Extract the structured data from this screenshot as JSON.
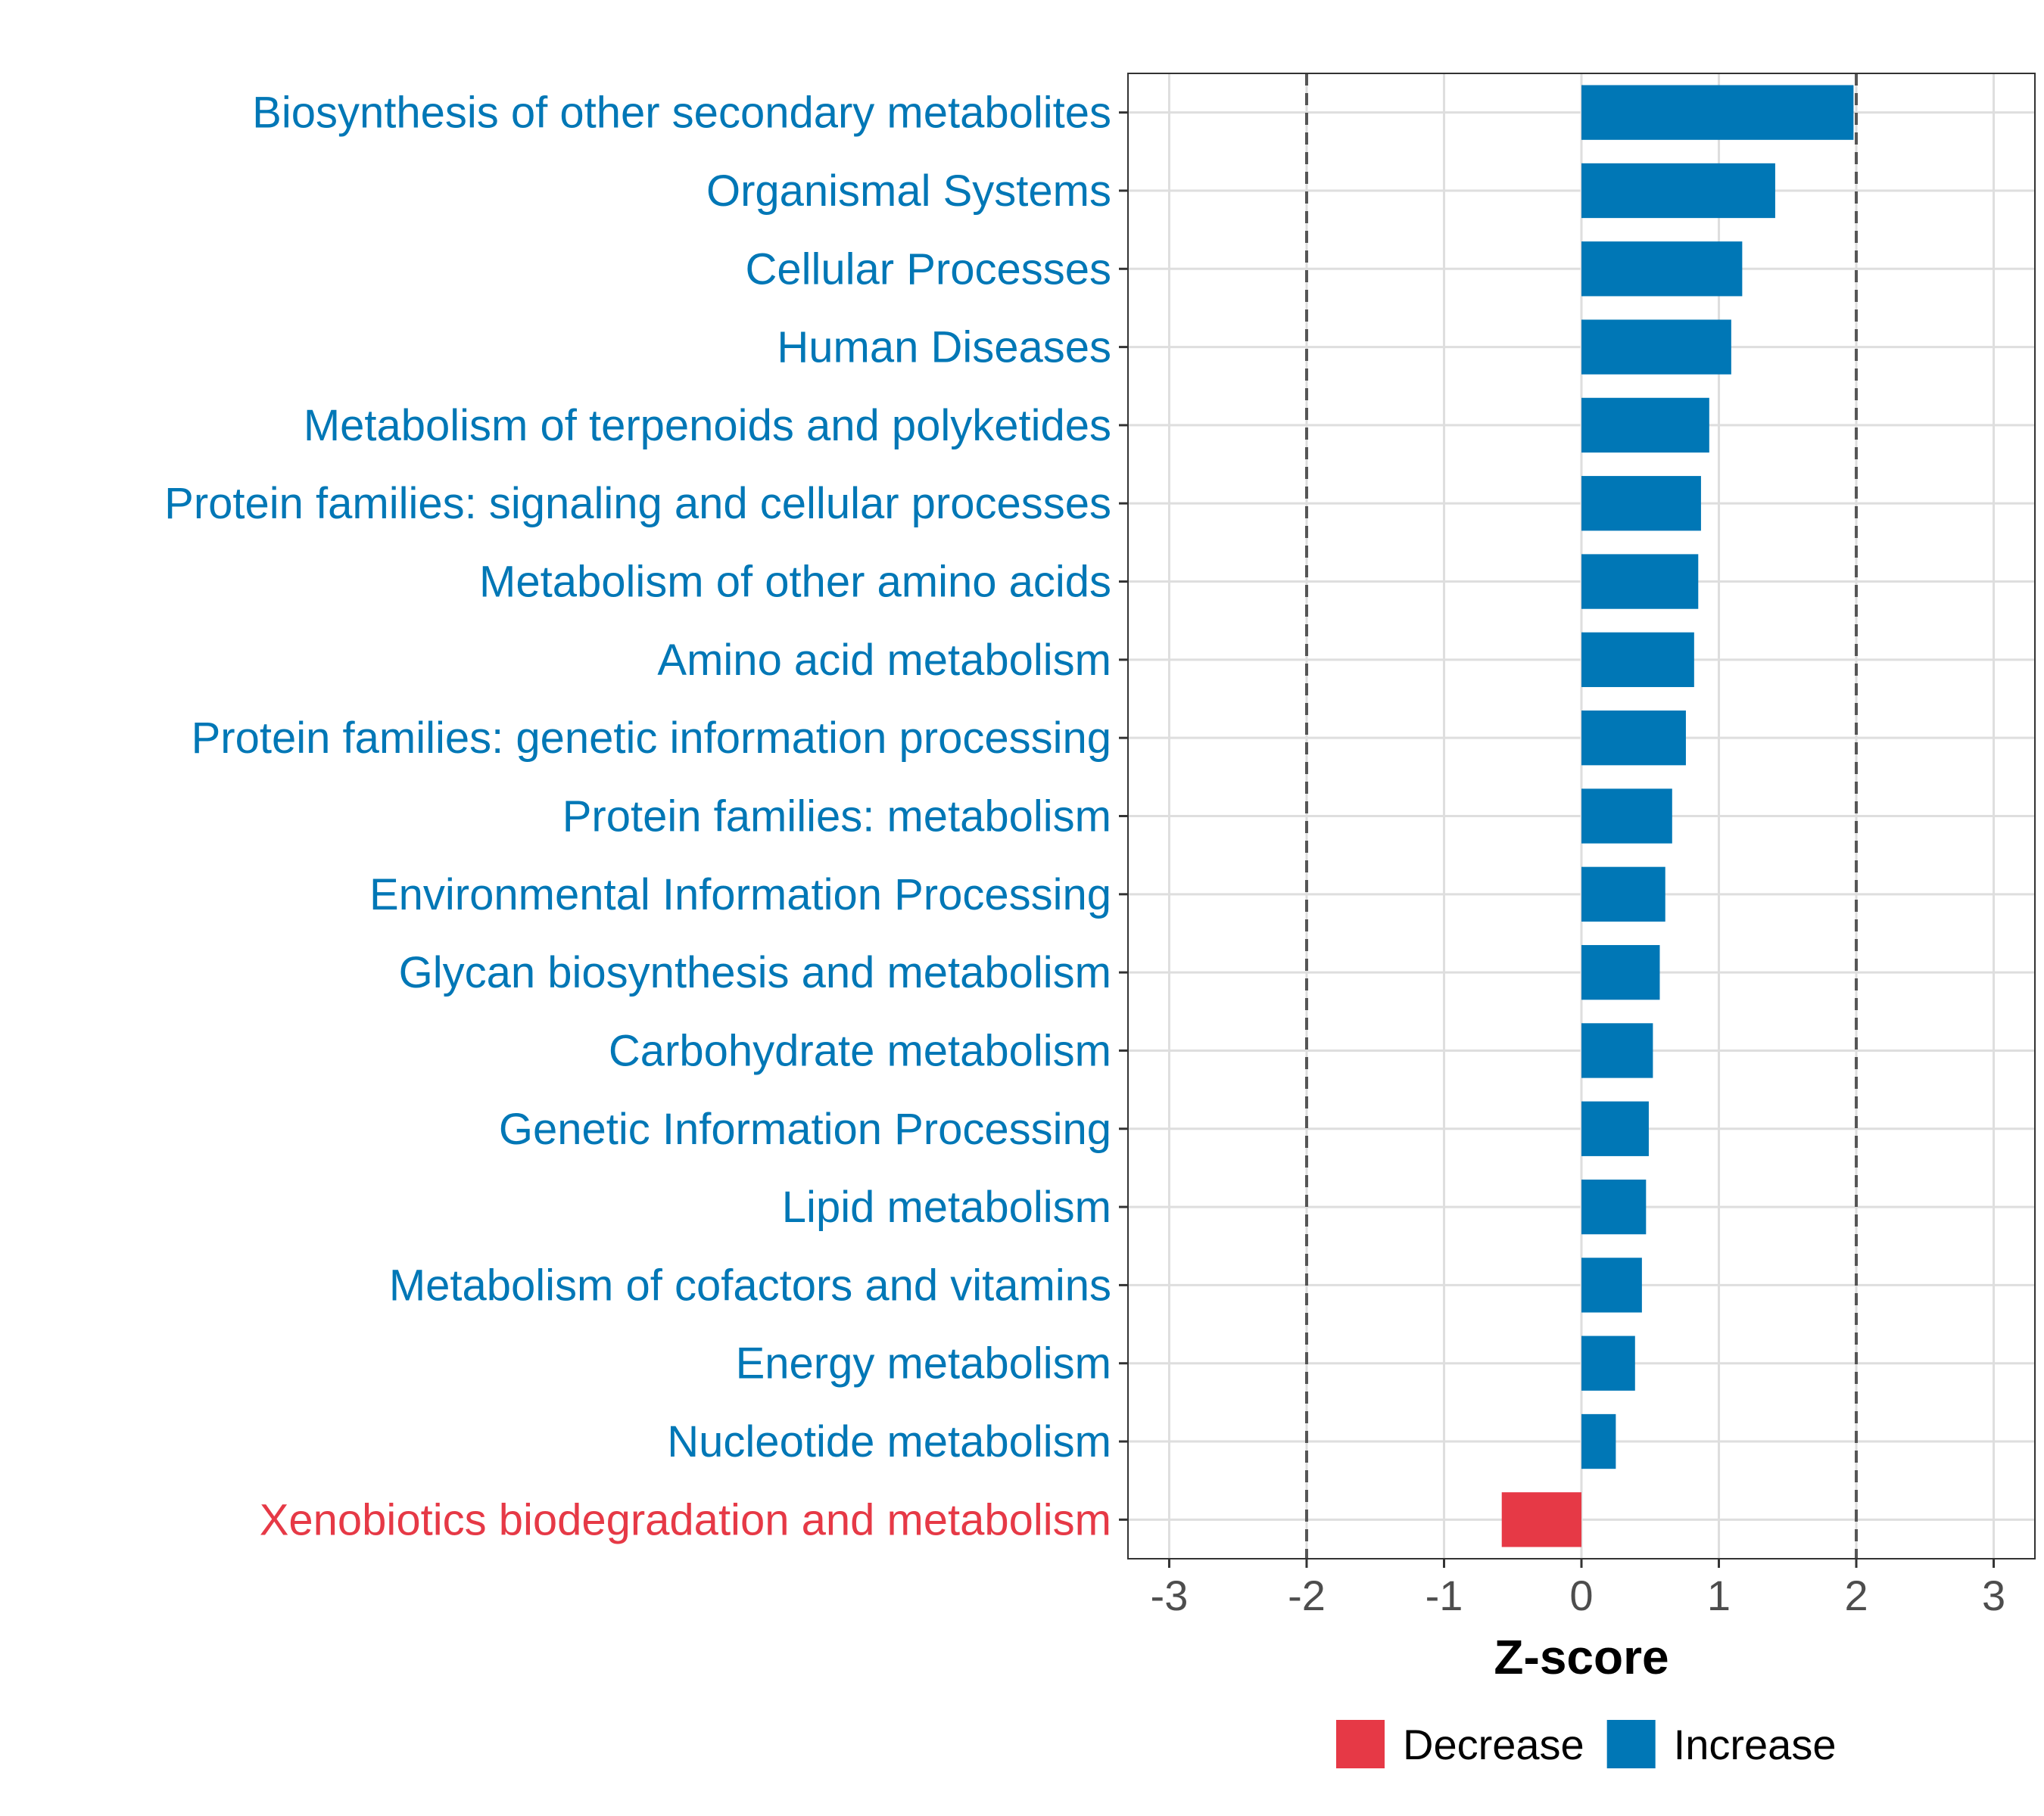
{
  "chart_data": {
    "type": "bar",
    "orientation": "horizontal",
    "categories": [
      "Biosynthesis of other secondary metabolites",
      "Organismal Systems",
      "Cellular Processes",
      "Human Diseases",
      "Metabolism of terpenoids and polyketides",
      "Protein families: signaling and cellular processes",
      "Metabolism of other amino acids",
      "Amino acid metabolism",
      "Protein families: genetic information processing",
      "Protein families: metabolism",
      "Environmental Information Processing",
      "Glycan biosynthesis and metabolism",
      "Carbohydrate metabolism",
      "Genetic Information Processing",
      "Lipid metabolism",
      "Metabolism of cofactors and vitamins",
      "Energy metabolism",
      "Nucleotide metabolism",
      "Xenobiotics biodegradation and metabolism"
    ],
    "values": [
      1.98,
      1.41,
      1.17,
      1.09,
      0.93,
      0.87,
      0.85,
      0.82,
      0.76,
      0.66,
      0.61,
      0.57,
      0.52,
      0.49,
      0.47,
      0.44,
      0.39,
      0.25,
      -0.58
    ],
    "groups": [
      "Increase",
      "Increase",
      "Increase",
      "Increase",
      "Increase",
      "Increase",
      "Increase",
      "Increase",
      "Increase",
      "Increase",
      "Increase",
      "Increase",
      "Increase",
      "Increase",
      "Increase",
      "Increase",
      "Increase",
      "Increase",
      "Decrease"
    ],
    "xlabel": "Z-score",
    "xlim": [
      -3.3,
      3.3
    ],
    "xticks": [
      -3,
      -2,
      -1,
      0,
      1,
      2,
      3
    ],
    "reference_lines": [
      -2,
      2
    ],
    "grid": true,
    "legend": {
      "position": "bottom",
      "entries": [
        {
          "name": "Decrease",
          "color": "#E63946"
        },
        {
          "name": "Increase",
          "color": "#0077B6"
        }
      ]
    },
    "colors": {
      "Increase": "#0077B6",
      "Decrease": "#E63946"
    }
  }
}
